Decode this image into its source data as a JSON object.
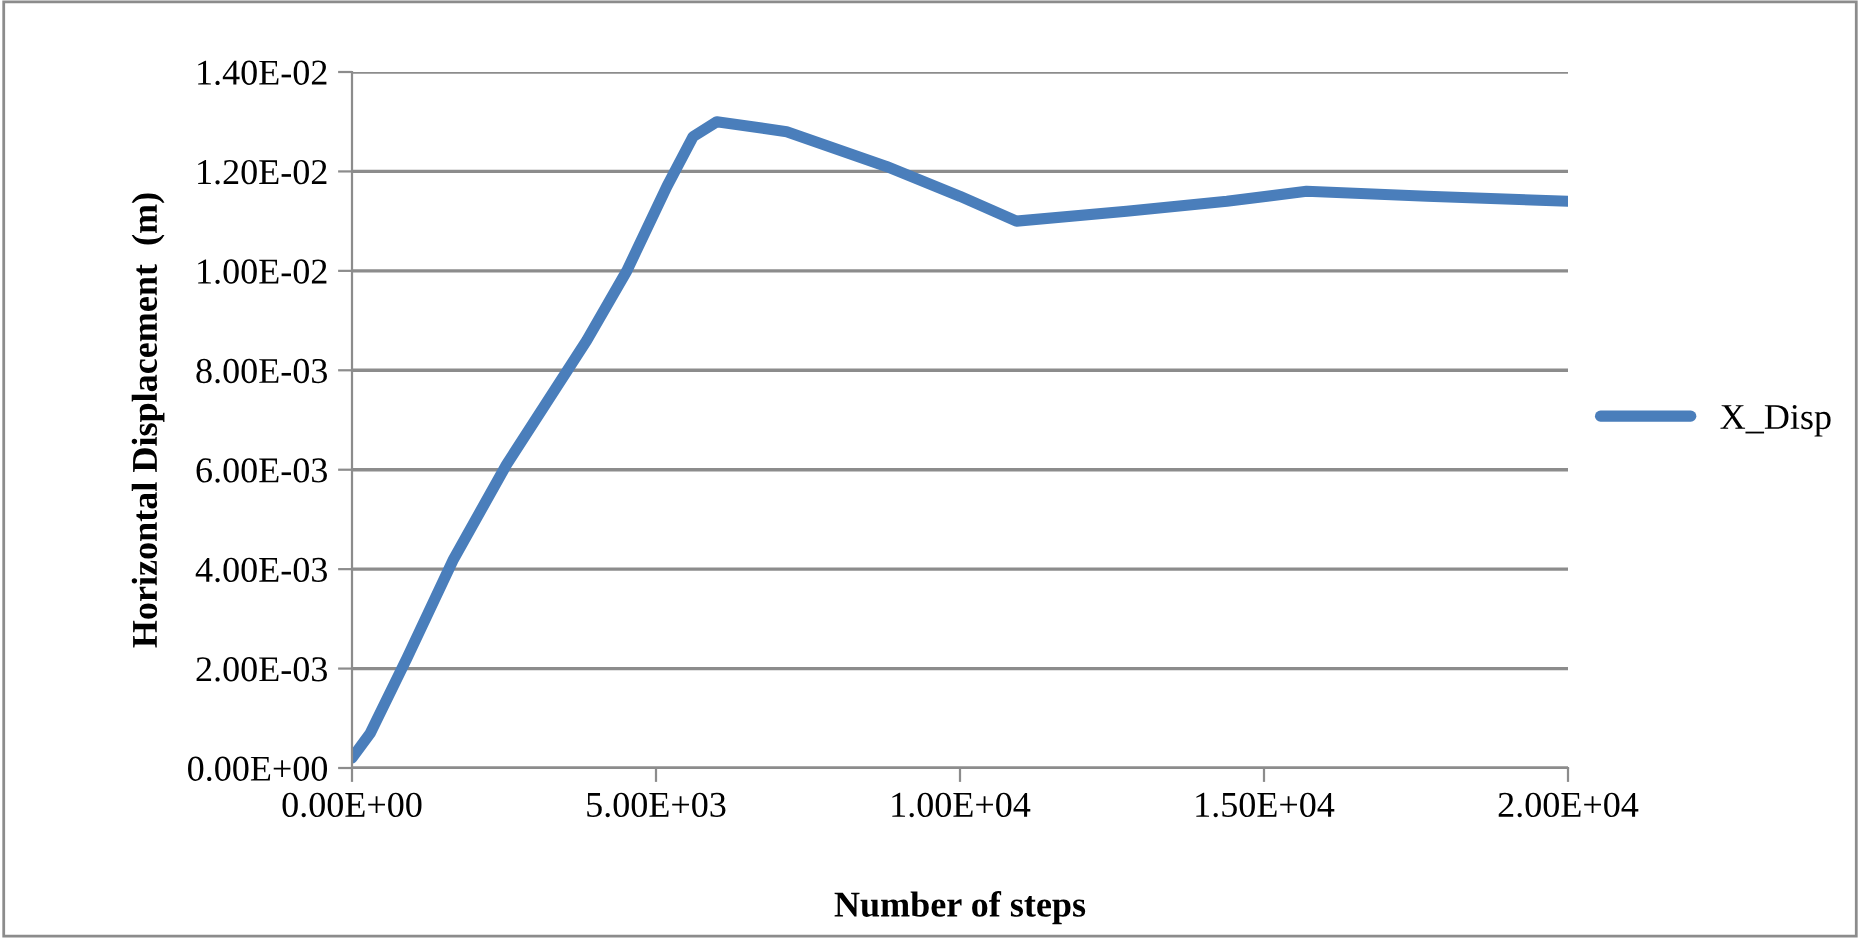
{
  "chart_data": {
    "type": "line",
    "xlabel": "Number of steps",
    "ylabel": "Horizontal Displacement  (m)",
    "series": [
      {
        "name": "X_Disp",
        "color": "#4a7ebb",
        "x": [
          0,
          300,
          900,
          1670,
          2540,
          3860,
          4520,
          5180,
          5610,
          6000,
          7150,
          8790,
          10000,
          10930,
          12740,
          14390,
          15700,
          17680,
          20000
        ],
        "values": [
          0.0002,
          0.0007,
          0.0022,
          0.0042,
          0.0061,
          0.0086,
          0.01,
          0.0117,
          0.0127,
          0.013,
          0.0128,
          0.0121,
          0.0115,
          0.011,
          0.0112,
          0.0114,
          0.0116,
          0.0115,
          0.0114
        ]
      }
    ],
    "xlim": [
      0,
      20000
    ],
    "ylim": [
      0,
      0.014
    ],
    "xticks": [
      {
        "value": 0,
        "label": "0.00E+00"
      },
      {
        "value": 5000,
        "label": "5.00E+03"
      },
      {
        "value": 10000,
        "label": "1.00E+04"
      },
      {
        "value": 15000,
        "label": "1.50E+04"
      },
      {
        "value": 20000,
        "label": "2.00E+04"
      }
    ],
    "yticks": [
      {
        "value": 0,
        "label": "0.00E+00"
      },
      {
        "value": 0.002,
        "label": "2.00E-03"
      },
      {
        "value": 0.004,
        "label": "4.00E-03"
      },
      {
        "value": 0.006,
        "label": "6.00E-03"
      },
      {
        "value": 0.008,
        "label": "8.00E-03"
      },
      {
        "value": 0.01,
        "label": "1.00E-02"
      },
      {
        "value": 0.012,
        "label": "1.20E-02"
      },
      {
        "value": 0.014,
        "label": "1.40E-02"
      }
    ],
    "grid": "y",
    "legend": "right",
    "marker": "none",
    "line_style": "solid"
  }
}
